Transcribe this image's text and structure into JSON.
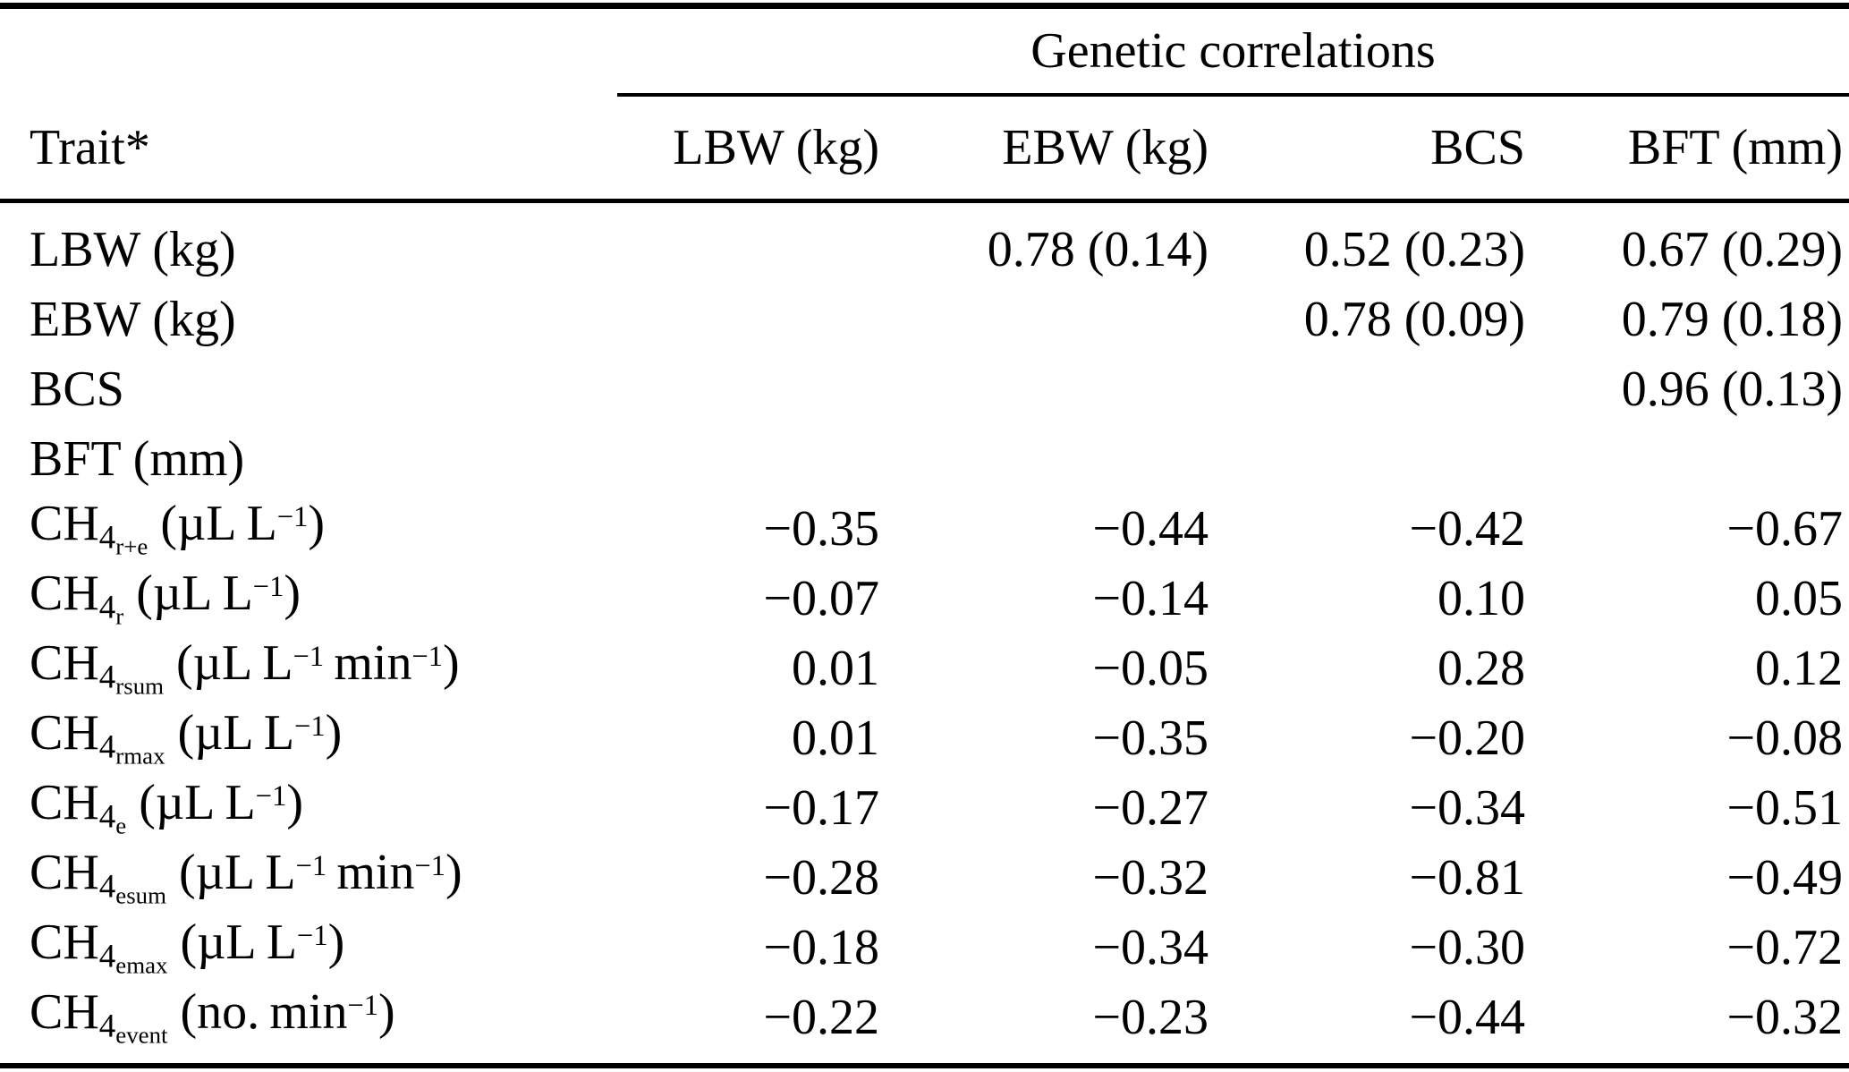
{
  "table": {
    "spanner_label": "Genetic correlations",
    "trait_column_header": "Trait*",
    "column_headers": [
      "LBW (kg)",
      "EBW (kg)",
      "BCS",
      "BFT (mm)"
    ],
    "colors": {
      "text": "#000000",
      "background": "#ffffff",
      "rule": "#000000"
    },
    "rows": [
      {
        "trait_plain": "LBW (kg)",
        "trait_segments": [
          {
            "style": "normal",
            "text": "LBW (kg)"
          }
        ],
        "values": [
          "",
          "0.78 (0.14)",
          "0.52 (0.23)",
          "0.67 (0.29)"
        ]
      },
      {
        "trait_plain": "EBW (kg)",
        "trait_segments": [
          {
            "style": "normal",
            "text": "EBW (kg)"
          }
        ],
        "values": [
          "",
          "",
          "0.78 (0.09)",
          "0.79 (0.18)"
        ]
      },
      {
        "trait_plain": "BCS",
        "trait_segments": [
          {
            "style": "normal",
            "text": "BCS"
          }
        ],
        "values": [
          "",
          "",
          "",
          "0.96 (0.13)"
        ]
      },
      {
        "trait_plain": "BFT (mm)",
        "trait_segments": [
          {
            "style": "normal",
            "text": "BFT (mm)"
          }
        ],
        "values": [
          "",
          "",
          "",
          ""
        ]
      },
      {
        "trait_plain": "CH4 r+e (µL L−1)",
        "trait_segments": [
          {
            "style": "normal",
            "text": "CH"
          },
          {
            "style": "sub",
            "text": "4"
          },
          {
            "style": "subsub",
            "text": "r+e"
          },
          {
            "style": "normal",
            "text": " (µL L"
          },
          {
            "style": "sup",
            "text": "−1"
          },
          {
            "style": "normal",
            "text": ")"
          }
        ],
        "values": [
          "−0.35",
          "−0.44",
          "−0.42",
          "−0.67"
        ]
      },
      {
        "trait_plain": "CH4 r (µL L−1)",
        "trait_segments": [
          {
            "style": "normal",
            "text": "CH"
          },
          {
            "style": "sub",
            "text": "4"
          },
          {
            "style": "subsub",
            "text": "r"
          },
          {
            "style": "normal",
            "text": " (µL L"
          },
          {
            "style": "sup",
            "text": "−1"
          },
          {
            "style": "normal",
            "text": ")"
          }
        ],
        "values": [
          "−0.07",
          "−0.14",
          "0.10",
          "0.05"
        ]
      },
      {
        "trait_plain": "CH4 rsum (µL L−1 min−1)",
        "trait_segments": [
          {
            "style": "normal",
            "text": "CH"
          },
          {
            "style": "sub",
            "text": "4"
          },
          {
            "style": "subsub",
            "text": "rsum"
          },
          {
            "style": "normal",
            "text": " (µL L"
          },
          {
            "style": "sup",
            "text": "−1"
          },
          {
            "style": "normal",
            "text": " min"
          },
          {
            "style": "sup",
            "text": "−1"
          },
          {
            "style": "normal",
            "text": ")"
          }
        ],
        "values": [
          "0.01",
          "−0.05",
          "0.28",
          "0.12"
        ]
      },
      {
        "trait_plain": "CH4 rmax (µL L−1)",
        "trait_segments": [
          {
            "style": "normal",
            "text": "CH"
          },
          {
            "style": "sub",
            "text": "4"
          },
          {
            "style": "subsub",
            "text": "rmax"
          },
          {
            "style": "normal",
            "text": " (µL L"
          },
          {
            "style": "sup",
            "text": "−1"
          },
          {
            "style": "normal",
            "text": ")"
          }
        ],
        "values": [
          "0.01",
          "−0.35",
          "−0.20",
          "−0.08"
        ]
      },
      {
        "trait_plain": "CH4 e (µL L−1)",
        "trait_segments": [
          {
            "style": "normal",
            "text": "CH"
          },
          {
            "style": "sub",
            "text": "4"
          },
          {
            "style": "subsub",
            "text": "e"
          },
          {
            "style": "normal",
            "text": " (µL L"
          },
          {
            "style": "sup",
            "text": "−1"
          },
          {
            "style": "normal",
            "text": ")"
          }
        ],
        "values": [
          "−0.17",
          "−0.27",
          "−0.34",
          "−0.51"
        ]
      },
      {
        "trait_plain": "CH4 esum (µL L−1 min−1)",
        "trait_segments": [
          {
            "style": "normal",
            "text": "CH"
          },
          {
            "style": "sub",
            "text": "4"
          },
          {
            "style": "subsub",
            "text": "esum"
          },
          {
            "style": "normal",
            "text": " (µL L"
          },
          {
            "style": "sup",
            "text": "−1"
          },
          {
            "style": "normal",
            "text": " min"
          },
          {
            "style": "sup",
            "text": "−1"
          },
          {
            "style": "normal",
            "text": ")"
          }
        ],
        "values": [
          "−0.28",
          "−0.32",
          "−0.81",
          "−0.49"
        ]
      },
      {
        "trait_plain": "CH4 emax (µL L−1)",
        "trait_segments": [
          {
            "style": "normal",
            "text": "CH"
          },
          {
            "style": "sub",
            "text": "4"
          },
          {
            "style": "subsub",
            "text": "emax"
          },
          {
            "style": "normal",
            "text": " (µL L"
          },
          {
            "style": "sup",
            "text": "−1"
          },
          {
            "style": "normal",
            "text": ")"
          }
        ],
        "values": [
          "−0.18",
          "−0.34",
          "−0.30",
          "−0.72"
        ]
      },
      {
        "trait_plain": "CH4 event (no. min−1)",
        "trait_segments": [
          {
            "style": "normal",
            "text": "CH"
          },
          {
            "style": "sub",
            "text": "4"
          },
          {
            "style": "subsub",
            "text": "event"
          },
          {
            "style": "normal",
            "text": " (no. min"
          },
          {
            "style": "sup",
            "text": "−1"
          },
          {
            "style": "normal",
            "text": ")"
          }
        ],
        "values": [
          "−0.22",
          "−0.23",
          "−0.44",
          "−0.32"
        ]
      }
    ]
  }
}
